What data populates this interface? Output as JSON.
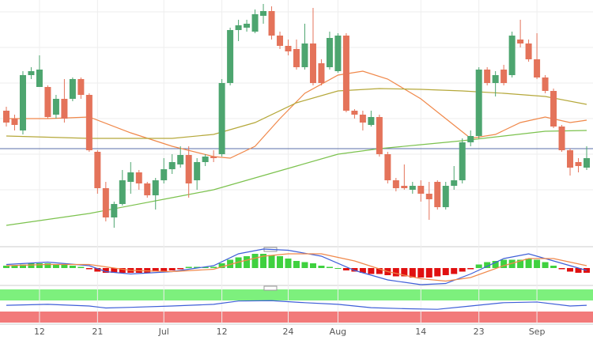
{
  "chart_data": [
    {
      "type": "candlestick",
      "categories": [
        null,
        null,
        null,
        null,
        "12",
        null,
        null,
        null,
        null,
        null,
        null,
        "21",
        null,
        null,
        null,
        null,
        null,
        null,
        null,
        "Jul",
        null,
        null,
        null,
        null,
        null,
        null,
        "12",
        null,
        null,
        null,
        null,
        null,
        null,
        null,
        "24",
        null,
        null,
        null,
        null,
        null,
        "Aug",
        null,
        null,
        null,
        null,
        null,
        null,
        null,
        null,
        null,
        "14",
        null,
        null,
        null,
        null,
        null,
        null,
        "23",
        null,
        null,
        null,
        null,
        null,
        null,
        "Sep",
        null,
        null,
        null,
        null,
        null,
        null
      ],
      "open": [
        170,
        160,
        145,
        215,
        200,
        200,
        165,
        185,
        185,
        210,
        190,
        118,
        72,
        35,
        52,
        80,
        92,
        78,
        63,
        82,
        96,
        102,
        114,
        82,
        105,
        112,
        115,
        205,
        272,
        275,
        270,
        290,
        296,
        265,
        252,
        248,
        225,
        255,
        230,
        225,
        220,
        265,
        170,
        165,
        152,
        162,
        115,
        82,
        75,
        70,
        75,
        65,
        80,
        48,
        75,
        82,
        130,
        138,
        222,
        205,
        222,
        215,
        260,
        255,
        235,
        212,
        195,
        150,
        120,
        105,
        98
      ],
      "high": [
        175,
        165,
        220,
        225,
        240,
        202,
        190,
        210,
        212,
        212,
        192,
        120,
        80,
        55,
        95,
        105,
        95,
        80,
        85,
        110,
        115,
        125,
        125,
        110,
        115,
        120,
        210,
        275,
        285,
        285,
        298,
        305,
        302,
        270,
        260,
        260,
        280,
        300,
        235,
        270,
        268,
        268,
        172,
        170,
        170,
        165,
        118,
        85,
        102,
        80,
        82,
        80,
        82,
        80,
        100,
        135,
        145,
        225,
        225,
        220,
        228,
        270,
        285,
        260,
        268,
        215,
        198,
        152,
        122,
        110,
        125
      ],
      "low": [
        150,
        145,
        140,
        210,
        200,
        160,
        160,
        155,
        182,
        185,
        118,
        65,
        30,
        22,
        50,
        65,
        70,
        60,
        45,
        78,
        90,
        98,
        60,
        70,
        100,
        105,
        112,
        202,
        258,
        270,
        268,
        280,
        260,
        248,
        240,
        222,
        222,
        202,
        202,
        222,
        218,
        168,
        160,
        145,
        150,
        112,
        78,
        68,
        70,
        65,
        55,
        32,
        45,
        45,
        70,
        78,
        125,
        135,
        202,
        188,
        202,
        212,
        250,
        232,
        210,
        192,
        148,
        118,
        88,
        92,
        95
      ],
      "close": [
        155,
        152,
        215,
        220,
        222,
        162,
        185,
        160,
        210,
        190,
        120,
        72,
        35,
        52,
        82,
        92,
        78,
        63,
        82,
        96,
        105,
        114,
        78,
        105,
        112,
        110,
        205,
        272,
        278,
        280,
        292,
        296,
        265,
        252,
        245,
        225,
        255,
        205,
        205,
        262,
        265,
        170,
        165,
        155,
        162,
        115,
        82,
        72,
        72,
        75,
        65,
        58,
        48,
        75,
        82,
        130,
        138,
        222,
        205,
        215,
        205,
        265,
        255,
        235,
        212,
        195,
        150,
        120,
        98,
        100,
        110
      ],
      "up_color": "#4da56f",
      "down_color": "#e4735a",
      "ylim": [
        0,
        310
      ],
      "grid": true,
      "hline": {
        "value": 122,
        "color": "#5b6fa8"
      },
      "series": [
        {
          "color": "#f0884a",
          "x": [
            0,
            5,
            10,
            15,
            20,
            25,
            27,
            30,
            33,
            36,
            40,
            43,
            46,
            50,
            53,
            56,
            59,
            62,
            65,
            68,
            70
          ],
          "values": [
            160,
            160,
            162,
            142,
            125,
            112,
            110,
            125,
            160,
            192,
            215,
            220,
            210,
            185,
            160,
            135,
            140,
            155,
            162,
            155,
            158
          ]
        },
        {
          "color": "#b5a83a",
          "x": [
            0,
            10,
            20,
            25,
            30,
            35,
            40,
            45,
            50,
            55,
            60,
            65,
            70
          ],
          "values": [
            138,
            135,
            135,
            140,
            155,
            180,
            195,
            198,
            197,
            195,
            192,
            188,
            178
          ]
        },
        {
          "color": "#7cc24e",
          "x": [
            0,
            10,
            20,
            25,
            30,
            35,
            40,
            45,
            50,
            55,
            60,
            65,
            70
          ],
          "values": [
            25,
            40,
            60,
            70,
            85,
            100,
            115,
            122,
            127,
            132,
            138,
            144,
            145
          ]
        }
      ]
    },
    {
      "type": "macd",
      "ylim": [
        -14,
        14
      ],
      "histogram": {
        "up_color": "#3fd13f",
        "down_color": "#e01010",
        "values": [
          2,
          2,
          3,
          4,
          4,
          4,
          3,
          3,
          2,
          1,
          -1,
          -3,
          -4,
          -4,
          -4,
          -4,
          -4,
          -4,
          -3,
          -3,
          -2,
          -1,
          1,
          1,
          1,
          1,
          4,
          7,
          9,
          10,
          12,
          12,
          11,
          10,
          8,
          6,
          5,
          4,
          2,
          1,
          0,
          -2,
          -3,
          -4,
          -5,
          -5,
          -6,
          -7,
          -7,
          -8,
          -8,
          -8,
          -7,
          -6,
          -5,
          -3,
          -1,
          3,
          5,
          6,
          7,
          7,
          7,
          8,
          7,
          5,
          2,
          -1,
          -3,
          -4,
          -4
        ]
      },
      "series": [
        {
          "color": "#3f5fd8",
          "x": [
            0,
            5,
            10,
            12,
            15,
            20,
            25,
            28,
            31,
            34,
            38,
            42,
            46,
            50,
            53,
            56,
            60,
            63,
            66,
            70
          ],
          "values": [
            3,
            5,
            2,
            -3,
            -5,
            -3,
            2,
            12,
            16,
            15,
            10,
            -2,
            -10,
            -14,
            -13,
            -5,
            8,
            12,
            6,
            -2
          ]
        },
        {
          "color": "#f0884a",
          "x": [
            0,
            5,
            10,
            12,
            15,
            20,
            25,
            28,
            31,
            34,
            38,
            42,
            46,
            50,
            53,
            56,
            60,
            63,
            66,
            70
          ],
          "values": [
            2,
            3,
            3,
            1,
            -2,
            -3,
            -1,
            5,
            10,
            12,
            12,
            6,
            -3,
            -9,
            -11,
            -8,
            2,
            8,
            8,
            2
          ]
        }
      ]
    },
    {
      "type": "oscillator",
      "ylim": [
        0,
        100
      ],
      "series": [
        {
          "color": "#3f5fd8",
          "x": [
            0,
            5,
            10,
            12,
            15,
            20,
            25,
            28,
            32,
            36,
            40,
            44,
            48,
            52,
            56,
            60,
            64,
            68,
            70
          ],
          "values": [
            52,
            55,
            50,
            44,
            46,
            50,
            55,
            65,
            66,
            60,
            55,
            45,
            42,
            40,
            50,
            60,
            62,
            50,
            52
          ]
        }
      ]
    }
  ]
}
